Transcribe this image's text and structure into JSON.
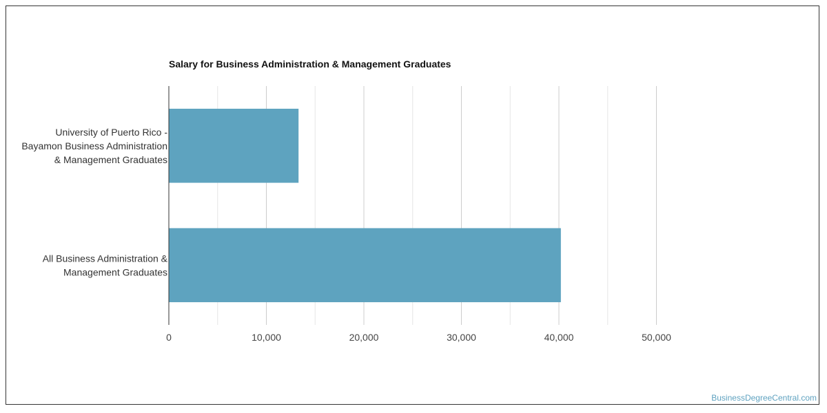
{
  "watermark": "BusinessDegreeCentral.com",
  "chart_data": {
    "type": "bar",
    "orientation": "horizontal",
    "title": "Salary for Business Administration & Management Graduates",
    "categories": [
      "University of Puerto Rico - Bayamon Business Administration & Management Graduates",
      "All Business Administration & Management Graduates"
    ],
    "category_label_lines": [
      [
        "University of Puerto Rico -",
        "Bayamon Business Administration",
        "& Management Graduates"
      ],
      [
        "All Business Administration &",
        "Management Graduates"
      ]
    ],
    "values": [
      13300,
      40200
    ],
    "xlim": [
      0,
      50000
    ],
    "xticks": [
      0,
      10000,
      20000,
      30000,
      40000,
      50000
    ],
    "xtick_labels": [
      "0",
      "10,000",
      "20,000",
      "30,000",
      "40,000",
      "50,000"
    ],
    "minor_gridlines": true,
    "grid": true,
    "legend": "none",
    "bar_color": "#5ea3bf"
  }
}
